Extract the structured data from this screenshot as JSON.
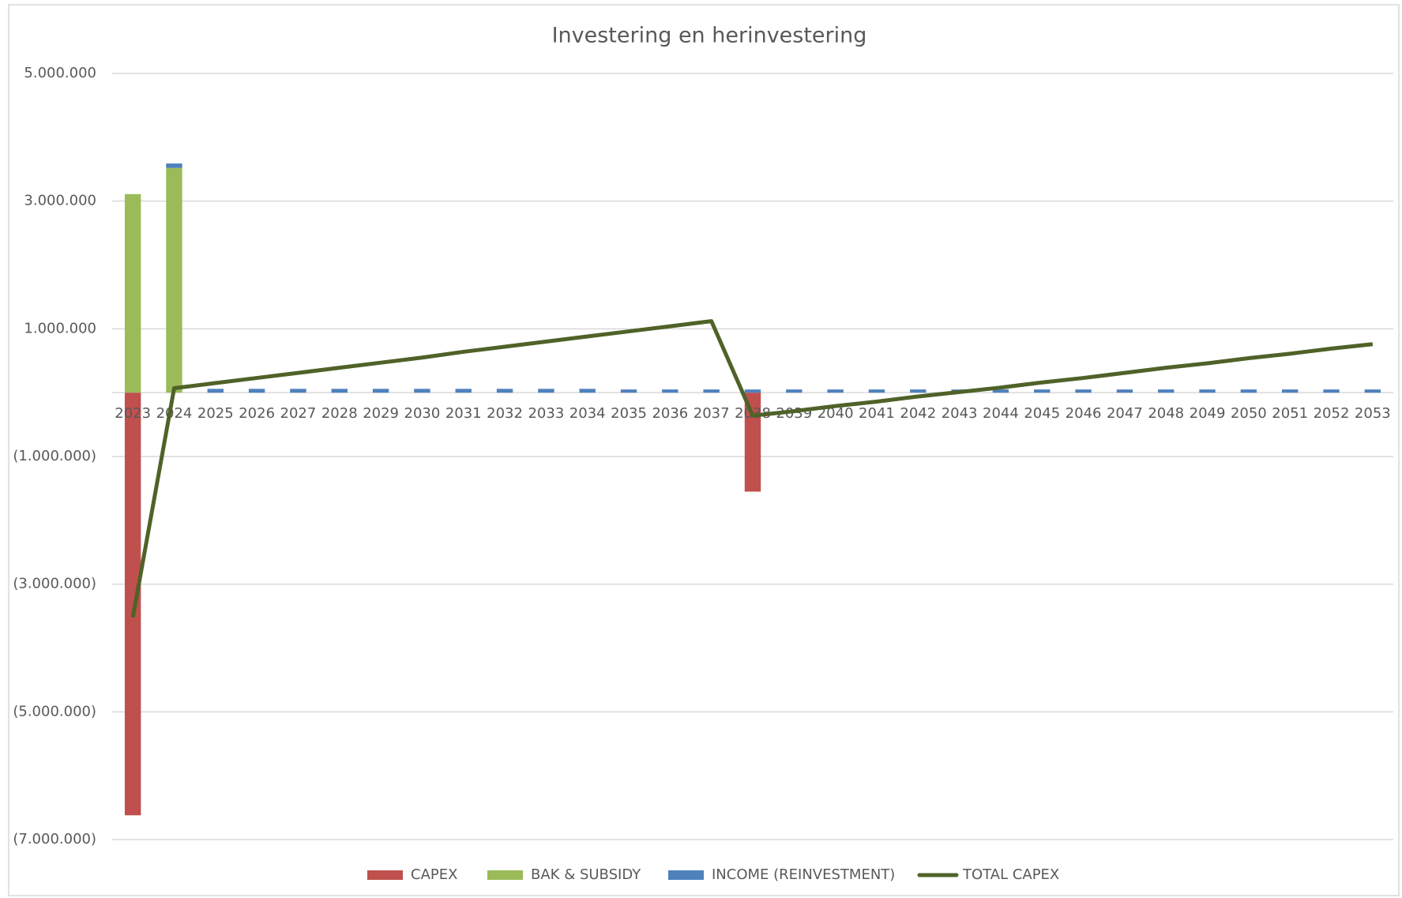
{
  "chart_data": {
    "type": "bar",
    "title": "Investering en herinvestering",
    "categories": [
      "2023",
      "2024",
      "2025",
      "2026",
      "2027",
      "2028",
      "2029",
      "2030",
      "2031",
      "2032",
      "2033",
      "2034",
      "2035",
      "2036",
      "2037",
      "2038",
      "2039",
      "2040",
      "2041",
      "2042",
      "2043",
      "2044",
      "2045",
      "2046",
      "2047",
      "2048",
      "2049",
      "2050",
      "2051",
      "2052",
      "2053"
    ],
    "series": [
      {
        "name": "CAPEX",
        "type": "bar",
        "color": "#c0504d",
        "values": [
          -6620000,
          0,
          0,
          0,
          0,
          0,
          0,
          0,
          0,
          0,
          0,
          0,
          0,
          0,
          0,
          -1550000,
          0,
          0,
          0,
          0,
          0,
          0,
          0,
          0,
          0,
          0,
          0,
          0,
          0,
          0,
          0
        ]
      },
      {
        "name": "BAK & SUBSIDY",
        "type": "bar",
        "color": "#9bbb59",
        "values": [
          3110000,
          3520000,
          0,
          0,
          0,
          0,
          0,
          0,
          0,
          0,
          0,
          0,
          0,
          0,
          0,
          0,
          0,
          0,
          0,
          0,
          0,
          0,
          0,
          0,
          0,
          0,
          0,
          0,
          0,
          0,
          0
        ]
      },
      {
        "name": "INCOME (REINVESTMENT)",
        "type": "bar",
        "color": "#4f81bd",
        "values": [
          0,
          70000,
          60000,
          60000,
          60000,
          60000,
          60000,
          60000,
          60000,
          60000,
          60000,
          60000,
          50000,
          50000,
          50000,
          50000,
          50000,
          50000,
          50000,
          50000,
          50000,
          50000,
          50000,
          50000,
          50000,
          50000,
          50000,
          50000,
          50000,
          50000,
          50000
        ]
      },
      {
        "name": "TOTAL CAPEX",
        "type": "line",
        "color": "#4f6228",
        "values": [
          -3520000,
          70000,
          150000,
          230000,
          310000,
          390000,
          470000,
          550000,
          640000,
          720000,
          800000,
          880000,
          960000,
          1040000,
          1120000,
          -360000,
          -290000,
          -210000,
          -140000,
          -60000,
          10000,
          80000,
          160000,
          230000,
          310000,
          390000,
          460000,
          540000,
          610000,
          690000,
          760000
        ]
      }
    ],
    "ylim": [
      -7000000,
      5000000
    ],
    "yticks": [
      {
        "value": 5000000,
        "label": "5.000.000"
      },
      {
        "value": 3000000,
        "label": "3.000.000"
      },
      {
        "value": 1000000,
        "label": "1.000.000"
      },
      {
        "value": -1000000,
        "label": "(1.000.000)"
      },
      {
        "value": -3000000,
        "label": "(3.000.000)"
      },
      {
        "value": -5000000,
        "label": "(5.000.000)"
      },
      {
        "value": -7000000,
        "label": "(7.000.000)"
      }
    ],
    "grid": true,
    "legend": "bottom"
  }
}
